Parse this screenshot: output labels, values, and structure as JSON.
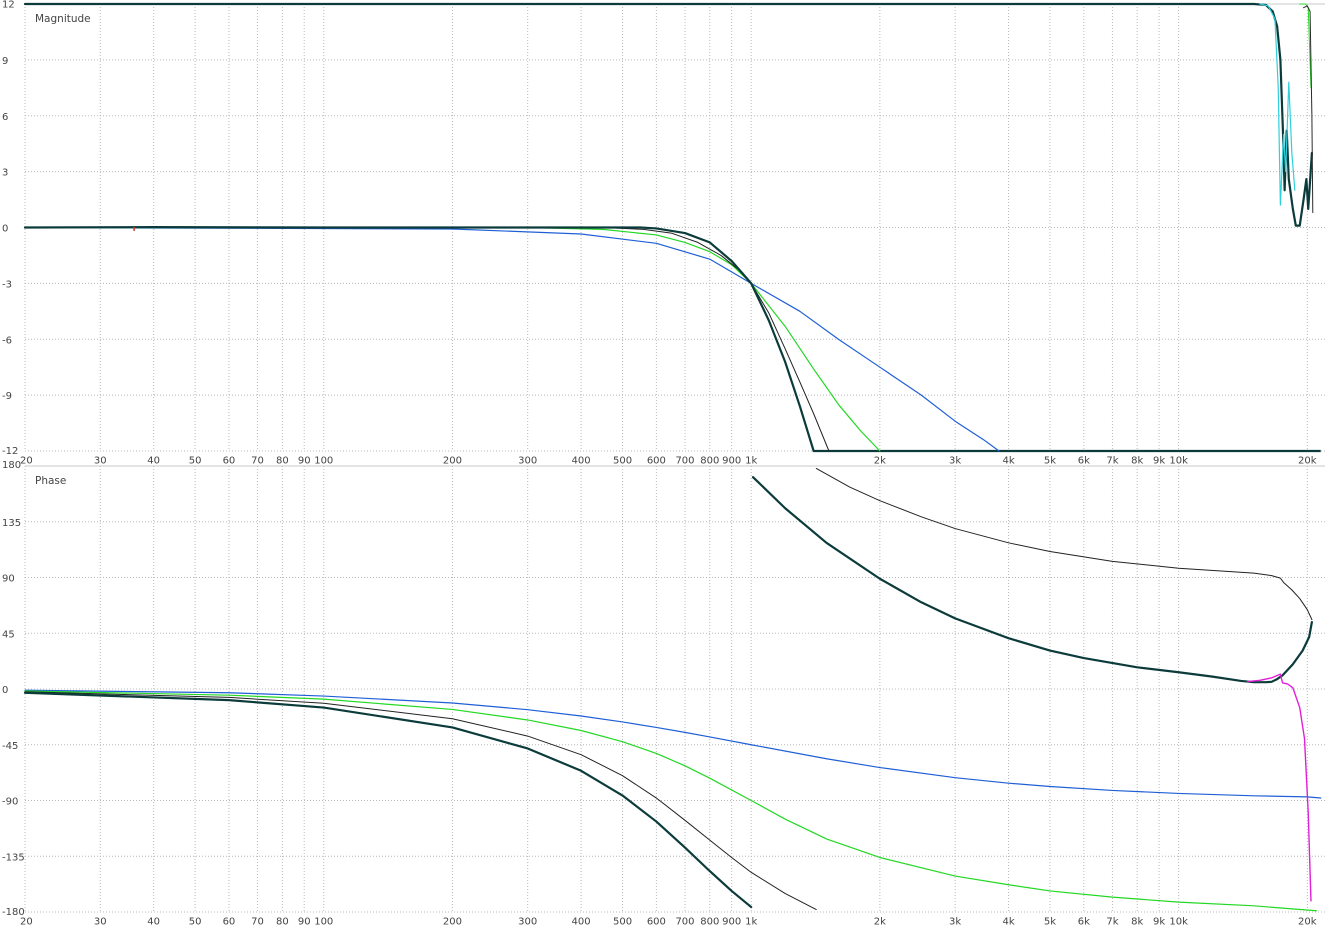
{
  "chart_data": [
    {
      "type": "line",
      "title": "Magnitude",
      "x_scale": "log",
      "xlim": [
        20,
        22000
      ],
      "ylim": [
        -12,
        12
      ],
      "grid": true,
      "x_tick_labels": [
        "20",
        "30",
        "40",
        "50",
        "60",
        "70",
        "80",
        "90",
        "100",
        "200",
        "300",
        "400",
        "500",
        "600",
        "700",
        "800",
        "900",
        "1k",
        "2k",
        "3k",
        "4k",
        "5k",
        "6k",
        "7k",
        "8k",
        "9k",
        "10k",
        "20k"
      ],
      "y_tick_labels": [
        "12",
        "9",
        "6",
        "3",
        "0",
        "-3",
        "-6",
        "-9",
        "-12"
      ],
      "series": [
        {
          "color": "#1f5fd6",
          "width": 1.2,
          "points": [
            [
              20,
              0
            ],
            [
              200,
              -0.08
            ],
            [
              400,
              -0.35
            ],
            [
              600,
              -0.85
            ],
            [
              800,
              -1.7
            ],
            [
              1000,
              -3
            ],
            [
              1300,
              -4.5
            ],
            [
              1600,
              -6
            ],
            [
              2000,
              -7.5
            ],
            [
              2500,
              -9
            ],
            [
              3000,
              -10.4
            ],
            [
              3500,
              -11.4
            ],
            [
              3800,
              -12
            ]
          ]
        },
        {
          "color": "#22d822",
          "width": 1.2,
          "points": [
            [
              20,
              0
            ],
            [
              300,
              0
            ],
            [
              450,
              -0.1
            ],
            [
              600,
              -0.4
            ],
            [
              700,
              -0.8
            ],
            [
              800,
              -1.3
            ],
            [
              900,
              -2
            ],
            [
              1000,
              -3
            ],
            [
              1200,
              -5.3
            ],
            [
              1400,
              -7.6
            ],
            [
              1600,
              -9.5
            ],
            [
              1800,
              -10.9
            ],
            [
              2000,
              -12
            ]
          ]
        },
        {
          "color": "#222222",
          "width": 1.0,
          "points": [
            [
              20,
              0
            ],
            [
              450,
              0
            ],
            [
              560,
              -0.1
            ],
            [
              650,
              -0.3
            ],
            [
              750,
              -0.8
            ],
            [
              850,
              -1.5
            ],
            [
              950,
              -2.4
            ],
            [
              1000,
              -3
            ],
            [
              1100,
              -4.6
            ],
            [
              1200,
              -6.5
            ],
            [
              1300,
              -8.3
            ],
            [
              1400,
              -10
            ],
            [
              1520,
              -12
            ]
          ]
        },
        {
          "color": "#0c3b3b",
          "width": 2.2,
          "points": [
            [
              20,
              0
            ],
            [
              40,
              0.02
            ],
            [
              100,
              0
            ],
            [
              550,
              0
            ],
            [
              600,
              -0.05
            ],
            [
              700,
              -0.3
            ],
            [
              800,
              -0.8
            ],
            [
              900,
              -1.8
            ],
            [
              1000,
              -3
            ],
            [
              1100,
              -5
            ],
            [
              1200,
              -7.2
            ],
            [
              1300,
              -9.6
            ],
            [
              1400,
              -12
            ]
          ]
        },
        {
          "color": "#0c3b3b",
          "width": 2.2,
          "points": [
            [
              20,
              12
            ],
            [
              15000,
              12
            ],
            [
              16000,
              11.95
            ],
            [
              16600,
              11.6
            ],
            [
              17000,
              10.8
            ],
            [
              17300,
              9
            ],
            [
              17550,
              5
            ],
            [
              17700,
              2
            ],
            [
              17900,
              5.2
            ],
            [
              18100,
              2.6
            ],
            [
              18500,
              1
            ],
            [
              18800,
              0.1
            ],
            [
              19200,
              0.1
            ],
            [
              19600,
              1.5
            ],
            [
              19900,
              2.6
            ],
            [
              20100,
              1
            ],
            [
              20300,
              2.5
            ],
            [
              20500,
              4
            ]
          ]
        },
        {
          "color": "#2ed0dc",
          "width": 1.2,
          "points": [
            [
              15500,
              12
            ],
            [
              16200,
              11.9
            ],
            [
              16800,
              11.2
            ],
            [
              17100,
              7.5
            ],
            [
              17300,
              1.2
            ],
            [
              17600,
              5
            ],
            [
              17800,
              3
            ],
            [
              18100,
              7.8
            ],
            [
              18400,
              4
            ],
            [
              18700,
              2
            ]
          ]
        },
        {
          "color": "#22d822",
          "width": 1.0,
          "points": [
            [
              19200,
              12
            ],
            [
              19800,
              12
            ],
            [
              20100,
              11.8
            ],
            [
              20400,
              7.5
            ]
          ]
        },
        {
          "color": "#2a2a2a",
          "width": 1.0,
          "points": [
            [
              19600,
              11.8
            ],
            [
              20000,
              11.9
            ],
            [
              20300,
              11.6
            ],
            [
              20500,
              6
            ],
            [
              20600,
              0.8
            ]
          ]
        }
      ],
      "bottom_line": {
        "color": "#0c3b3b",
        "from": 1400,
        "to": 21500,
        "y": -12
      }
    },
    {
      "type": "line",
      "title": "Phase",
      "x_scale": "log",
      "xlim": [
        20,
        22000
      ],
      "ylim": [
        -180,
        180
      ],
      "grid": true,
      "x_tick_labels": [
        "20",
        "30",
        "40",
        "50",
        "60",
        "70",
        "80",
        "90",
        "100",
        "200",
        "300",
        "400",
        "500",
        "600",
        "700",
        "800",
        "900",
        "1k",
        "2k",
        "3k",
        "4k",
        "5k",
        "6k",
        "7k",
        "8k",
        "9k",
        "10k",
        "20k"
      ],
      "y_tick_labels": [
        "180",
        "135",
        "90",
        "45",
        "0",
        "-45",
        "-90",
        "-135",
        "-180"
      ],
      "series": [
        {
          "color": "#1f5fd6",
          "width": 1.2,
          "points": [
            [
              20,
              -1
            ],
            [
              60,
              -3
            ],
            [
              100,
              -5.7
            ],
            [
              200,
              -11.3
            ],
            [
              300,
              -16.7
            ],
            [
              400,
              -21.8
            ],
            [
              500,
              -26.6
            ],
            [
              600,
              -31
            ],
            [
              700,
              -35
            ],
            [
              800,
              -38.7
            ],
            [
              1000,
              -45
            ],
            [
              1500,
              -56.3
            ],
            [
              2000,
              -63.4
            ],
            [
              3000,
              -71.6
            ],
            [
              4000,
              -76
            ],
            [
              5000,
              -78.7
            ],
            [
              7000,
              -81.9
            ],
            [
              10000,
              -84.3
            ],
            [
              15000,
              -86.2
            ],
            [
              20000,
              -87.1
            ],
            [
              21500,
              -88
            ]
          ]
        },
        {
          "color": "#22d822",
          "width": 1.2,
          "points": [
            [
              20,
              -1.6
            ],
            [
              60,
              -5
            ],
            [
              100,
              -8.2
            ],
            [
              200,
              -16.5
            ],
            [
              300,
              -25
            ],
            [
              400,
              -33.5
            ],
            [
              500,
              -42.5
            ],
            [
              600,
              -52
            ],
            [
              700,
              -62
            ],
            [
              800,
              -72
            ],
            [
              1000,
              -90
            ],
            [
              1200,
              -105
            ],
            [
              1500,
              -121
            ],
            [
              2000,
              -136
            ],
            [
              3000,
              -151
            ],
            [
              4000,
              -158
            ],
            [
              5000,
              -163
            ],
            [
              7000,
              -168
            ],
            [
              10000,
              -172
            ],
            [
              15000,
              -175
            ],
            [
              21000,
              -179
            ]
          ]
        },
        {
          "color": "#222222",
          "width": 1.0,
          "points": [
            [
              20,
              -2.2
            ],
            [
              60,
              -6.8
            ],
            [
              100,
              -11.5
            ],
            [
              200,
              -24
            ],
            [
              300,
              -38
            ],
            [
              400,
              -53
            ],
            [
              500,
              -70
            ],
            [
              600,
              -88
            ],
            [
              700,
              -106
            ],
            [
              800,
              -122
            ],
            [
              900,
              -136
            ],
            [
              1000,
              -148
            ],
            [
              1200,
              -165
            ],
            [
              1420,
              -178
            ]
          ]
        },
        {
          "color": "#0c3b3b",
          "width": 2.2,
          "points": [
            [
              20,
              -3
            ],
            [
              60,
              -9
            ],
            [
              100,
              -15
            ],
            [
              200,
              -31
            ],
            [
              300,
              -48
            ],
            [
              400,
              -66
            ],
            [
              500,
              -86
            ],
            [
              600,
              -107
            ],
            [
              700,
              -128
            ],
            [
              800,
              -147
            ],
            [
              900,
              -163
            ],
            [
              1000,
              -176
            ]
          ]
        },
        {
          "color": "#222222",
          "width": 1.0,
          "points": [
            [
              1420,
              178
            ],
            [
              1700,
              163
            ],
            [
              2000,
              152
            ],
            [
              2500,
              139
            ],
            [
              3000,
              129.5
            ],
            [
              4000,
              118
            ],
            [
              5000,
              111
            ],
            [
              7000,
              103
            ],
            [
              10000,
              97.5
            ],
            [
              15000,
              93.5
            ],
            [
              16500,
              91.5
            ],
            [
              17300,
              89.5
            ],
            [
              17600,
              86
            ],
            [
              18400,
              80
            ],
            [
              19200,
              73
            ],
            [
              20000,
              64
            ],
            [
              20500,
              56
            ]
          ]
        },
        {
          "color": "#0c3b3b",
          "width": 2.2,
          "points": [
            [
              1010,
              171
            ],
            [
              1200,
              146
            ],
            [
              1500,
              118
            ],
            [
              2000,
              89
            ],
            [
              2500,
              70
            ],
            [
              3000,
              57
            ],
            [
              4000,
              41
            ],
            [
              5000,
              31
            ],
            [
              6000,
              25
            ],
            [
              8000,
              17.5
            ],
            [
              10000,
              13.5
            ],
            [
              12000,
              10
            ],
            [
              14000,
              6.5
            ],
            [
              15000,
              5.5
            ],
            [
              16000,
              5.5
            ],
            [
              16500,
              5.8
            ],
            [
              17000,
              8
            ],
            [
              17500,
              11
            ],
            [
              18500,
              20
            ],
            [
              19500,
              31
            ],
            [
              20200,
              42
            ],
            [
              20500,
              54
            ]
          ]
        },
        {
          "color": "#e020d8",
          "width": 1.4,
          "points": [
            [
              14500,
              6
            ],
            [
              15500,
              7
            ],
            [
              16500,
              9
            ],
            [
              17300,
              12
            ],
            [
              17500,
              5
            ],
            [
              18000,
              4
            ],
            [
              18500,
              1
            ],
            [
              19200,
              -15
            ],
            [
              19700,
              -40
            ],
            [
              20100,
              -100
            ],
            [
              20400,
              -171
            ]
          ]
        }
      ]
    }
  ]
}
